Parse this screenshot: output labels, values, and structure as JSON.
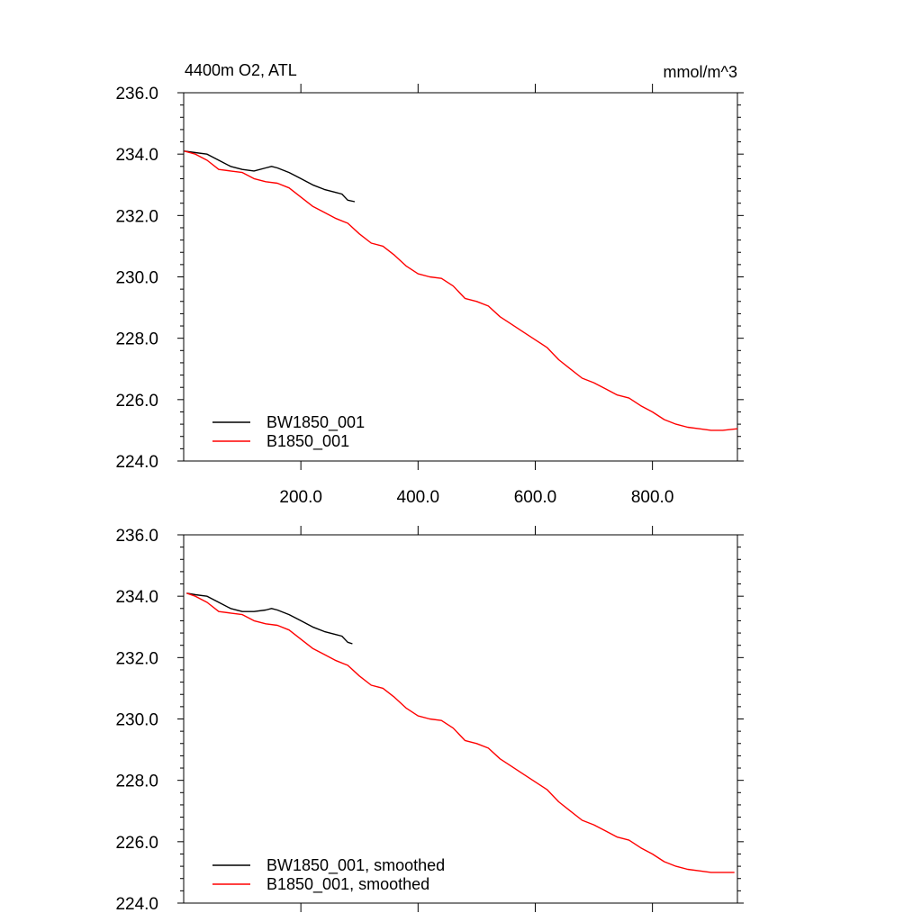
{
  "chart_data": [
    {
      "type": "line",
      "title_left": "4400m O2, ATL",
      "title_right": "mmol/m^3",
      "xlim": [
        0,
        945
      ],
      "ylim": [
        224,
        236
      ],
      "y_ticks": [
        "224.0",
        "226.0",
        "228.0",
        "230.0",
        "232.0",
        "234.0",
        "236.0"
      ],
      "x_ticks": [
        "200.0",
        "400.0",
        "600.0",
        "800.0"
      ],
      "show_x_tick_labels": true,
      "legend_position": "bottom-left",
      "series": [
        {
          "name": "BW1850_001",
          "color": "#000000",
          "x": [
            1,
            20,
            40,
            60,
            80,
            100,
            120,
            140,
            150,
            160,
            180,
            200,
            220,
            240,
            260,
            270,
            280,
            292
          ],
          "y": [
            234.1,
            234.05,
            234.0,
            233.8,
            233.6,
            233.5,
            233.45,
            233.55,
            233.6,
            233.55,
            233.4,
            233.2,
            233.0,
            232.85,
            232.75,
            232.7,
            232.5,
            232.45
          ]
        },
        {
          "name": "B1850_001",
          "color": "#ff0000",
          "x": [
            1,
            20,
            40,
            60,
            80,
            100,
            120,
            140,
            160,
            180,
            200,
            220,
            240,
            260,
            280,
            300,
            320,
            340,
            360,
            380,
            400,
            420,
            440,
            460,
            480,
            500,
            520,
            540,
            560,
            580,
            600,
            620,
            640,
            660,
            680,
            700,
            720,
            740,
            760,
            780,
            800,
            820,
            840,
            860,
            880,
            900,
            920,
            945
          ],
          "y": [
            234.1,
            234.0,
            233.8,
            233.5,
            233.45,
            233.4,
            233.2,
            233.1,
            233.05,
            232.9,
            232.6,
            232.3,
            232.1,
            231.9,
            231.75,
            231.4,
            231.1,
            231.0,
            230.7,
            230.35,
            230.1,
            230.0,
            229.95,
            229.7,
            229.3,
            229.2,
            229.05,
            228.7,
            228.45,
            228.2,
            227.95,
            227.7,
            227.3,
            227.0,
            226.7,
            226.55,
            226.35,
            226.15,
            226.05,
            225.8,
            225.6,
            225.35,
            225.2,
            225.1,
            225.05,
            225.0,
            225.0,
            225.05
          ]
        }
      ]
    },
    {
      "type": "line",
      "title_left": "",
      "title_right": "",
      "xlim": [
        0,
        945
      ],
      "ylim": [
        224,
        236
      ],
      "y_ticks": [
        "224.0",
        "226.0",
        "228.0",
        "230.0",
        "232.0",
        "234.0",
        "236.0"
      ],
      "x_ticks": [
        "200.0",
        "400.0",
        "600.0",
        "800.0"
      ],
      "show_x_tick_labels": false,
      "legend_position": "bottom-left",
      "series": [
        {
          "name": "BW1850_001, smoothed",
          "color": "#000000",
          "x": [
            5,
            20,
            40,
            60,
            80,
            100,
            120,
            140,
            150,
            160,
            180,
            200,
            220,
            240,
            260,
            270,
            280,
            288
          ],
          "y": [
            234.1,
            234.05,
            234.0,
            233.8,
            233.6,
            233.5,
            233.5,
            233.55,
            233.6,
            233.55,
            233.4,
            233.2,
            233.0,
            232.85,
            232.75,
            232.7,
            232.5,
            232.45
          ]
        },
        {
          "name": "B1850_001, smoothed",
          "color": "#ff0000",
          "x": [
            5,
            20,
            40,
            60,
            80,
            100,
            120,
            140,
            160,
            180,
            200,
            220,
            240,
            260,
            280,
            300,
            320,
            340,
            360,
            380,
            400,
            420,
            440,
            460,
            480,
            500,
            520,
            540,
            560,
            580,
            600,
            620,
            640,
            660,
            680,
            700,
            720,
            740,
            760,
            780,
            800,
            820,
            840,
            860,
            880,
            900,
            920,
            940
          ],
          "y": [
            234.1,
            234.0,
            233.8,
            233.5,
            233.45,
            233.4,
            233.2,
            233.1,
            233.05,
            232.9,
            232.6,
            232.3,
            232.1,
            231.9,
            231.75,
            231.4,
            231.1,
            231.0,
            230.7,
            230.35,
            230.1,
            230.0,
            229.95,
            229.7,
            229.3,
            229.2,
            229.05,
            228.7,
            228.45,
            228.2,
            227.95,
            227.7,
            227.3,
            227.0,
            226.7,
            226.55,
            226.35,
            226.15,
            226.05,
            225.8,
            225.6,
            225.35,
            225.2,
            225.1,
            225.05,
            225.0,
            225.0,
            225.0
          ]
        }
      ]
    }
  ]
}
